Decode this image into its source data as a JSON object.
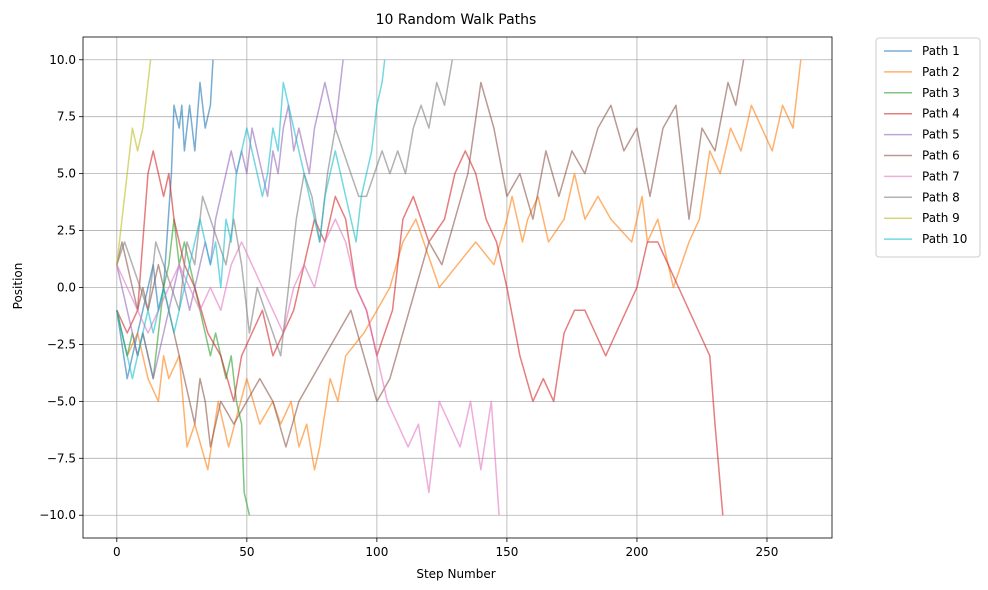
{
  "chart_data": {
    "type": "line",
    "title": "10 Random Walk Paths",
    "xlabel": "Step Number",
    "ylabel": "Position",
    "xlim": [
      -13,
      275
    ],
    "ylim": [
      -11,
      11
    ],
    "xticks": [
      0,
      50,
      100,
      150,
      200,
      250
    ],
    "yticks": [
      -10.0,
      -7.5,
      -5.0,
      -2.5,
      0.0,
      2.5,
      5.0,
      7.5,
      10.0
    ],
    "xtick_labels": [
      "0",
      "50",
      "100",
      "150",
      "200",
      "250"
    ],
    "ytick_labels": [
      "−10.0",
      "−7.5",
      "−5.0",
      "−2.5",
      "0.0",
      "2.5",
      "5.0",
      "7.5",
      "10.0"
    ],
    "grid": true,
    "legend_position": "outside-top-right",
    "line_alpha": 0.6,
    "series": [
      {
        "name": "Path 1",
        "color": "#1f77b4",
        "x": [
          0,
          4,
          6,
          8,
          10,
          12,
          14,
          16,
          18,
          21,
          22,
          24,
          25,
          26,
          28,
          30,
          32,
          34,
          36,
          37
        ],
        "y": [
          -1,
          -4,
          -3,
          -2,
          -1,
          0,
          1,
          -1,
          0,
          5,
          8,
          7,
          8,
          6,
          8,
          6,
          9,
          7,
          8,
          10
        ]
      },
      {
        "name": "Path 2",
        "color": "#ff7f0e",
        "x": [
          0,
          4,
          8,
          12,
          16,
          18,
          20,
          24,
          27,
          30,
          35,
          39,
          43,
          50,
          55,
          60,
          63,
          67,
          70,
          73,
          76,
          78,
          82,
          85,
          88,
          95,
          105,
          110,
          115,
          124,
          131,
          138,
          145,
          150,
          152,
          156,
          158,
          162,
          166,
          172,
          176,
          180,
          185,
          190,
          198,
          202,
          204,
          208,
          214,
          220,
          224,
          228,
          232,
          236,
          240,
          244,
          248,
          252,
          256,
          260,
          263
        ],
        "y": [
          -1,
          -3,
          -2,
          -4,
          -5,
          -3,
          -4,
          -3,
          -7,
          -6,
          -8,
          -5,
          -7,
          -4,
          -6,
          -5,
          -6,
          -5,
          -7,
          -6,
          -8,
          -7,
          -4,
          -5,
          -3,
          -2,
          0,
          2,
          3,
          0,
          1,
          2,
          1,
          3,
          4,
          2,
          3,
          4,
          2,
          3,
          5,
          3,
          4,
          3,
          2,
          4,
          2,
          3,
          0,
          2,
          3,
          6,
          5,
          7,
          6,
          8,
          7,
          6,
          8,
          7,
          10
        ]
      },
      {
        "name": "Path 3",
        "color": "#2ca02c",
        "x": [
          0,
          2,
          4,
          6,
          8,
          10,
          12,
          14,
          16,
          18,
          20,
          22,
          24,
          26,
          28,
          30,
          32,
          34,
          36,
          38,
          40,
          42,
          44,
          46,
          48,
          49,
          51
        ],
        "y": [
          -1,
          -2,
          -3,
          -2,
          -3,
          -2,
          -3,
          -4,
          -2,
          0,
          1,
          3,
          1,
          2,
          1,
          0,
          -1,
          -2,
          -3,
          -2,
          -3,
          -4,
          -3,
          -5,
          -6,
          -9,
          -10
        ]
      },
      {
        "name": "Path 4",
        "color": "#d62728",
        "x": [
          0,
          4,
          8,
          10,
          12,
          14,
          16,
          18,
          20,
          22,
          26,
          30,
          35,
          40,
          45,
          48,
          52,
          56,
          60,
          64,
          68,
          72,
          76,
          80,
          84,
          88,
          92,
          96,
          100,
          106,
          110,
          114,
          120,
          126,
          130,
          134,
          138,
          142,
          146,
          150,
          155,
          160,
          164,
          168,
          172,
          176,
          180,
          184,
          188,
          192,
          196,
          200,
          204,
          208,
          212,
          216,
          220,
          224,
          228,
          230,
          233
        ],
        "y": [
          -1,
          -2,
          -1,
          2,
          5,
          6,
          5,
          4,
          5,
          3,
          1,
          0,
          -2,
          -3,
          -5,
          -3,
          -2,
          -1,
          -3,
          -2,
          -1,
          1,
          3,
          2,
          4,
          3,
          0,
          -1,
          -3,
          -1,
          3,
          4,
          2,
          3,
          5,
          6,
          5,
          3,
          2,
          0,
          -3,
          -5,
          -4,
          -5,
          -2,
          -1,
          -1,
          -2,
          -3,
          -2,
          -1,
          0,
          2,
          2,
          1,
          0,
          -1,
          -2,
          -3,
          -6,
          -10
        ]
      },
      {
        "name": "Path 5",
        "color": "#9467bd",
        "x": [
          0,
          2,
          4,
          6,
          8,
          10,
          12,
          14,
          16,
          18,
          20,
          22,
          24,
          26,
          28,
          30,
          32,
          34,
          36,
          38,
          40,
          42,
          44,
          46,
          48,
          50,
          52,
          54,
          56,
          58,
          60,
          62,
          64,
          66,
          68,
          70,
          72,
          74,
          76,
          78,
          80,
          82,
          84,
          86,
          87
        ],
        "y": [
          1,
          0,
          -1,
          -2,
          -3,
          -2,
          -3,
          -4,
          -3,
          -2,
          -1,
          0,
          1,
          0,
          -1,
          0,
          1,
          2,
          1,
          3,
          4,
          5,
          6,
          5,
          6,
          5,
          7,
          6,
          5,
          4,
          6,
          5,
          7,
          8,
          6,
          7,
          6,
          5,
          7,
          8,
          9,
          8,
          7,
          9,
          10
        ]
      },
      {
        "name": "Path 6",
        "color": "#8c564b",
        "x": [
          0,
          2,
          4,
          6,
          8,
          10,
          12,
          14,
          16,
          18,
          20,
          22,
          24,
          26,
          28,
          30,
          32,
          34,
          36,
          38,
          40,
          45,
          50,
          55,
          60,
          65,
          70,
          75,
          80,
          85,
          90,
          95,
          100,
          105,
          110,
          115,
          120,
          125,
          130,
          135,
          140,
          145,
          150,
          155,
          160,
          165,
          170,
          175,
          180,
          185,
          190,
          195,
          200,
          205,
          210,
          215,
          220,
          225,
          230,
          235,
          238,
          241
        ],
        "y": [
          1,
          2,
          1,
          0,
          -1,
          0,
          -1,
          0,
          1,
          0,
          -1,
          -2,
          -3,
          -4,
          -5,
          -6,
          -4,
          -5,
          -7,
          -6,
          -5,
          -6,
          -5,
          -4,
          -5,
          -7,
          -5,
          -4,
          -3,
          -2,
          -1,
          -3,
          -5,
          -4,
          -2,
          0,
          2,
          1,
          3,
          5,
          9,
          7,
          4,
          5,
          3,
          6,
          4,
          6,
          5,
          7,
          8,
          6,
          7,
          4,
          7,
          8,
          3,
          7,
          6,
          9,
          8,
          10
        ]
      },
      {
        "name": "Path 7",
        "color": "#e377c2",
        "x": [
          0,
          4,
          8,
          12,
          16,
          20,
          24,
          28,
          32,
          36,
          40,
          44,
          48,
          52,
          56,
          60,
          64,
          68,
          72,
          76,
          80,
          84,
          88,
          92,
          96,
          100,
          104,
          108,
          112,
          116,
          120,
          124,
          128,
          132,
          136,
          140,
          144,
          147
        ],
        "y": [
          1,
          0,
          -1,
          -2,
          -1,
          0,
          1,
          0,
          -1,
          0,
          -1,
          1,
          2,
          1,
          0,
          -1,
          -2,
          0,
          1,
          0,
          2,
          3,
          2,
          0,
          -1,
          -3,
          -5,
          -6,
          -7,
          -6,
          -9,
          -5,
          -6,
          -7,
          -5,
          -8,
          -5,
          -10
        ]
      },
      {
        "name": "Path 8",
        "color": "#7f7f7f",
        "x": [
          0,
          3,
          6,
          9,
          12,
          15,
          18,
          21,
          24,
          27,
          30,
          33,
          36,
          39,
          42,
          45,
          48,
          51,
          54,
          57,
          60,
          63,
          66,
          69,
          72,
          75,
          78,
          81,
          84,
          87,
          90,
          93,
          96,
          99,
          102,
          105,
          108,
          111,
          114,
          117,
          120,
          123,
          126,
          129
        ],
        "y": [
          1,
          2,
          1,
          0,
          -1,
          2,
          1,
          0,
          -1,
          2,
          1,
          4,
          3,
          2,
          1,
          3,
          1,
          -2,
          0,
          -1,
          -2,
          -3,
          0,
          3,
          5,
          4,
          2,
          5,
          7,
          6,
          5,
          4,
          4,
          5,
          6,
          5,
          6,
          5,
          7,
          8,
          7,
          9,
          8,
          10
        ]
      },
      {
        "name": "Path 9",
        "color": "#bcbd22",
        "x": [
          0,
          2,
          4,
          6,
          8,
          10,
          12,
          13
        ],
        "y": [
          1,
          3,
          5,
          7,
          6,
          7,
          9,
          10
        ]
      },
      {
        "name": "Path 10",
        "color": "#17becf",
        "x": [
          0,
          2,
          4,
          6,
          8,
          10,
          12,
          14,
          16,
          18,
          20,
          22,
          24,
          26,
          28,
          30,
          32,
          34,
          36,
          38,
          40,
          42,
          44,
          46,
          48,
          50,
          52,
          54,
          56,
          58,
          60,
          62,
          64,
          66,
          68,
          70,
          72,
          74,
          76,
          78,
          80,
          82,
          84,
          86,
          88,
          90,
          92,
          94,
          96,
          98,
          100,
          102,
          103
        ],
        "y": [
          -1,
          -2,
          -3,
          -4,
          -3,
          -2,
          -1,
          -2,
          -1,
          0,
          -1,
          -2,
          -1,
          0,
          1,
          2,
          3,
          2,
          1,
          2,
          0,
          3,
          2,
          5,
          6,
          7,
          6,
          5,
          4,
          5,
          7,
          6,
          9,
          8,
          7,
          6,
          5,
          4,
          3,
          2,
          4,
          5,
          6,
          5,
          4,
          3,
          2,
          4,
          5,
          6,
          8,
          9,
          10
        ]
      }
    ]
  }
}
